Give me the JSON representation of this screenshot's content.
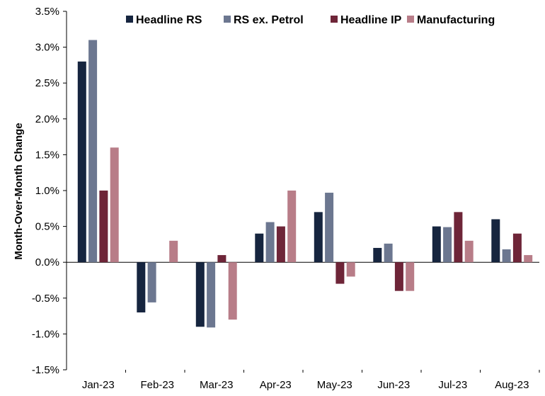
{
  "chart_data": {
    "type": "bar",
    "title": "",
    "xlabel": "",
    "ylabel": "Month-Over-Month Change",
    "categories": [
      "Jan-23",
      "Feb-23",
      "Mar-23",
      "Apr-23",
      "May-23",
      "Jun-23",
      "Jul-23",
      "Aug-23"
    ],
    "series": [
      {
        "name": "Headline RS",
        "color": "#16253f",
        "values": [
          2.8,
          -0.7,
          -0.9,
          0.4,
          0.7,
          0.2,
          0.5,
          0.6
        ]
      },
      {
        "name": "RS ex. Petrol",
        "color": "#6c7790",
        "values": [
          3.1,
          -0.56,
          -0.91,
          0.56,
          0.97,
          0.26,
          0.49,
          0.18
        ]
      },
      {
        "name": "Headline IP",
        "color": "#6e2538",
        "values": [
          1.0,
          0.0,
          0.1,
          0.5,
          -0.3,
          -0.4,
          0.7,
          0.4
        ]
      },
      {
        "name": "Manufacturing",
        "color": "#b87d88",
        "values": [
          1.6,
          0.3,
          -0.8,
          1.0,
          -0.2,
          -0.4,
          0.3,
          0.1
        ]
      }
    ],
    "ylim": [
      -1.5,
      3.5
    ],
    "yticks": [
      "-1.5%",
      "-1.0%",
      "-0.5%",
      "0.0%",
      "0.5%",
      "1.0%",
      "1.5%",
      "2.0%",
      "2.5%",
      "3.0%",
      "3.5%"
    ],
    "grid": false,
    "legend_position": "top"
  }
}
